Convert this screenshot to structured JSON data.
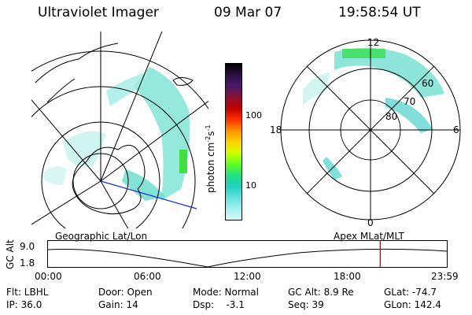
{
  "header": {
    "title": "Ultraviolet Imager",
    "date": "09 Mar 07",
    "time": "19:58:54 UT"
  },
  "colorbar": {
    "label": "photon cm",
    "label_exp1": "-2",
    "label_mid": "s",
    "label_exp2": "-1",
    "ticks": [
      "100",
      "10"
    ],
    "colors": [
      "#000000",
      "#2a1040",
      "#4a1a6a",
      "#8a1030",
      "#c00000",
      "#ff3000",
      "#ff9000",
      "#ffd000",
      "#d0ff00",
      "#60ff20",
      "#20e080",
      "#20d0c0",
      "#60e0e0",
      "#a0f0f0",
      "#d8f8f8"
    ]
  },
  "polar_plot": {
    "labels": {
      "top": "12",
      "bottom": "0",
      "left": "18",
      "right": "6"
    },
    "circle_labels": [
      "60",
      "70",
      "80"
    ]
  },
  "timeline": {
    "left_label": "Geographic Lat/Lon",
    "right_label": "Apex  MLat/MLT",
    "yaxis_label": "GC Alt",
    "y_ticks": [
      "9.0",
      "1.8"
    ],
    "x_ticks": [
      "00:00",
      "06:00",
      "12:00",
      "18:00",
      "23:59"
    ],
    "marker_time_hours": 19.98
  },
  "status": {
    "filter": "Flt: LBHL",
    "ip": "IP: 36.0",
    "door": "Door: Open",
    "gain": "Gain: 14",
    "mode": "Mode: Normal",
    "dsp": "Dsp:    -3.1",
    "gc_alt": "GC Alt: 8.9 Re",
    "seq": "Seq: 39",
    "glat": "GLat: -74.7",
    "glon": "GLon: 142.4"
  }
}
